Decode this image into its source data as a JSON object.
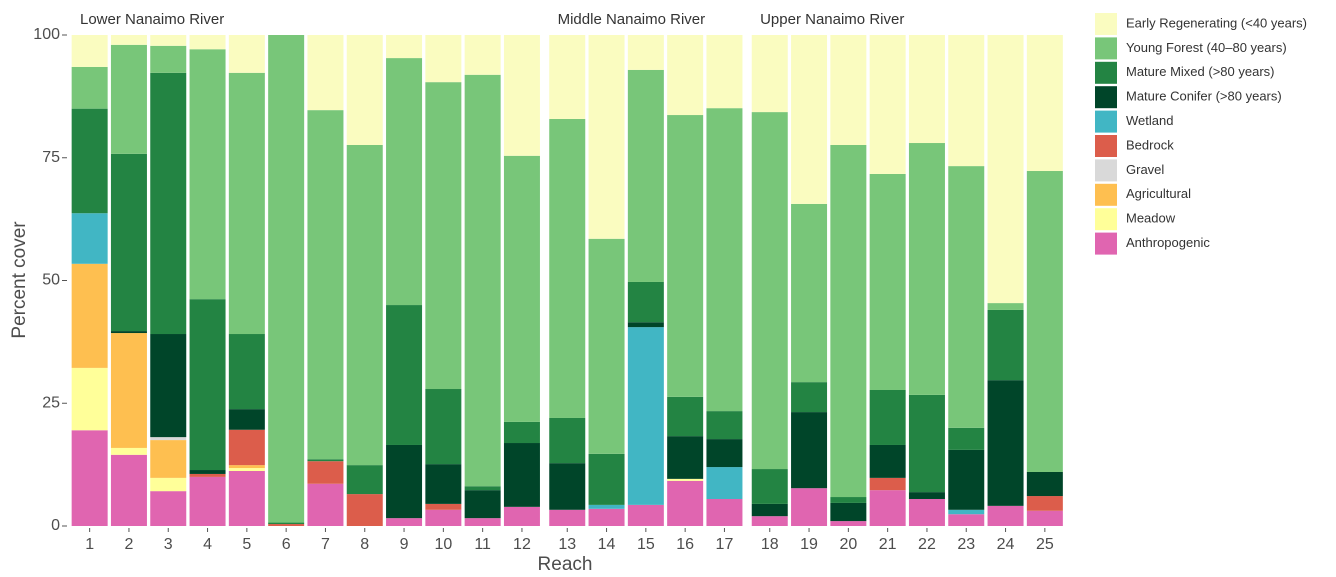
{
  "chart_data": {
    "type": "stacked_bar",
    "xlabel": "Reach",
    "ylabel": "Percent cover",
    "panels": [
      {
        "title": "Lower Nanaimo River",
        "categories": [
          "1",
          "2",
          "3",
          "4",
          "5",
          "6",
          "7",
          "8",
          "9",
          "10",
          "11",
          "12"
        ]
      },
      {
        "title": "Middle Nanaimo River",
        "categories": [
          "13",
          "14",
          "15",
          "16",
          "17"
        ]
      },
      {
        "title": "Upper Nanaimo River",
        "categories": [
          "18",
          "19",
          "20",
          "21",
          "22",
          "23",
          "24",
          "25"
        ]
      }
    ],
    "ylim": [
      0,
      100
    ],
    "yticks": [
      0,
      25,
      50,
      75,
      100
    ],
    "grid": false,
    "legend": "right",
    "series": [
      {
        "name": "Early Regenerating (<40 years)",
        "color": "#fafcc0",
        "values": [
          6.5,
          2,
          2.2,
          2.9,
          7.7,
          0,
          15.3,
          22.4,
          4.7,
          9.6,
          8.1,
          24.6,
          17.1,
          41.5,
          7.1,
          16.3,
          14.9,
          15.7,
          34.4,
          22.4,
          28.3,
          22,
          26.7,
          54.6,
          27.7
        ]
      },
      {
        "name": "Young Forest (40–80 years)",
        "color": "#78c679",
        "values": [
          8.5,
          22.2,
          5.5,
          50.9,
          53.2,
          99.3,
          71.1,
          65.2,
          50.3,
          62.5,
          83.8,
          54.2,
          60.9,
          43.8,
          43.2,
          57.4,
          61.7,
          72.7,
          36.3,
          71.7,
          44,
          51.3,
          53.3,
          1.4,
          61.3
        ]
      },
      {
        "name": "Mature Mixed (>80 years)",
        "color": "#238443",
        "values": [
          21.3,
          36.1,
          53.2,
          34.8,
          15.3,
          0.3,
          0.4,
          5.9,
          28.5,
          15.3,
          0.8,
          4.3,
          9.2,
          10.4,
          8.2,
          8,
          5.7,
          7.1,
          6.1,
          1.2,
          11.2,
          19.8,
          4.5,
          14.3,
          0
        ]
      },
      {
        "name": "Mature Conifer (>80 years)",
        "color": "#004529",
        "values": [
          0,
          0.4,
          21,
          0.8,
          4.2,
          0,
          0,
          0,
          14.9,
          8.1,
          5.7,
          13,
          9.5,
          0,
          1,
          8.7,
          5.7,
          2.5,
          15.5,
          3.7,
          6.7,
          1.4,
          12.2,
          25.6,
          4.9
        ]
      },
      {
        "name": "Wetland",
        "color": "#41b6c4",
        "values": [
          10.3,
          0,
          0,
          0,
          0,
          0,
          0,
          0,
          0,
          0,
          0,
          0,
          0,
          0.8,
          36.2,
          0,
          6.5,
          0,
          0,
          0,
          0,
          0,
          0.9,
          0,
          0
        ]
      },
      {
        "name": "Bedrock",
        "color": "#dc5d4b",
        "values": [
          0,
          0,
          0,
          0.6,
          7.2,
          0.4,
          4.6,
          6.5,
          0,
          1.2,
          0,
          0,
          0,
          0,
          0,
          0,
          0,
          0,
          0,
          0,
          2.5,
          0,
          0,
          0,
          3
        ]
      },
      {
        "name": "Gravel",
        "color": "#d9d9d9",
        "values": [
          0,
          0,
          0.6,
          0,
          0,
          0,
          0,
          0,
          0,
          0,
          0,
          0,
          0,
          0,
          0,
          0,
          0,
          0,
          0,
          0,
          0,
          0,
          0,
          0,
          0
        ]
      },
      {
        "name": "Agricultural",
        "color": "#febf50",
        "values": [
          21.2,
          23.4,
          7.7,
          0,
          0.6,
          0,
          0,
          0,
          0,
          0,
          0,
          0,
          0,
          0,
          0,
          0,
          0,
          0,
          0,
          0,
          0,
          0,
          0,
          0,
          0
        ]
      },
      {
        "name": "Meadow",
        "color": "#ffff99",
        "values": [
          12.7,
          1.4,
          2.7,
          0,
          0.6,
          0,
          0,
          0,
          0,
          0,
          0,
          0,
          0,
          0,
          0,
          0.4,
          0,
          0,
          0,
          0,
          0,
          0,
          0,
          0,
          0
        ]
      },
      {
        "name": "Anthropogenic",
        "color": "#e065b0",
        "values": [
          19.5,
          14.5,
          7.1,
          10,
          11.2,
          0,
          8.6,
          0,
          1.6,
          3.3,
          1.6,
          3.9,
          3.3,
          3.5,
          4.3,
          9.2,
          5.5,
          2,
          7.7,
          1,
          7.3,
          5.5,
          2.4,
          4.1,
          3.1
        ]
      }
    ]
  }
}
